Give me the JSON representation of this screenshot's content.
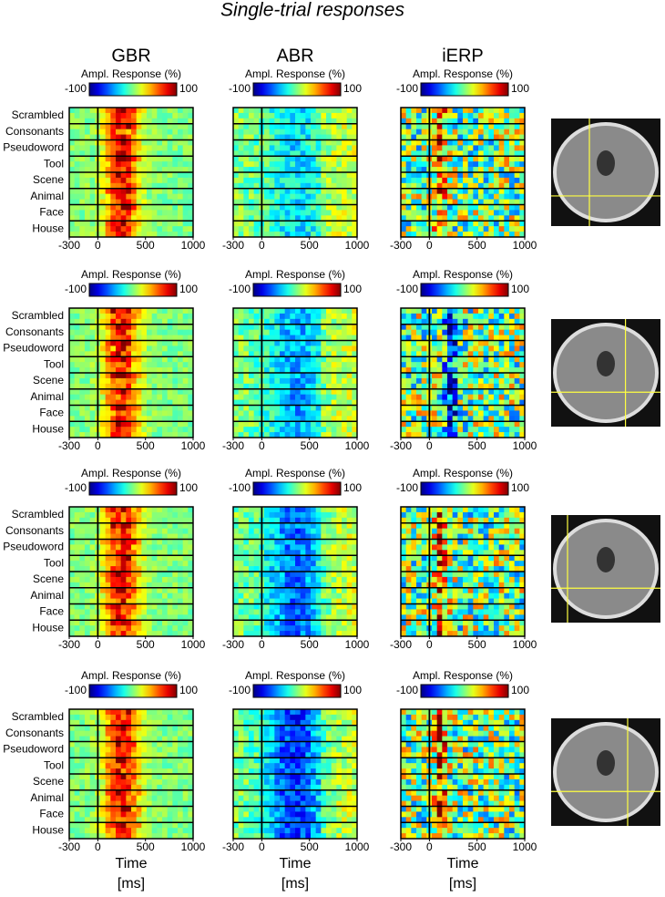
{
  "title": "Single-trial responses",
  "columns": [
    "GBR",
    "ABR",
    "iERP"
  ],
  "colorbar": {
    "label": "Ampl. Response (%)",
    "range": [
      -100,
      100
    ],
    "ticks": [
      -100,
      100
    ]
  },
  "categories": [
    "Scrambled",
    "Consonants",
    "Pseudoword",
    "Tool",
    "Scene",
    "Animal",
    "Face",
    "House"
  ],
  "x_axis": {
    "range": [
      -300,
      1000
    ],
    "ticks": [
      -300,
      0,
      500,
      1000
    ],
    "label": [
      "Time",
      "[ms]"
    ]
  }
}
